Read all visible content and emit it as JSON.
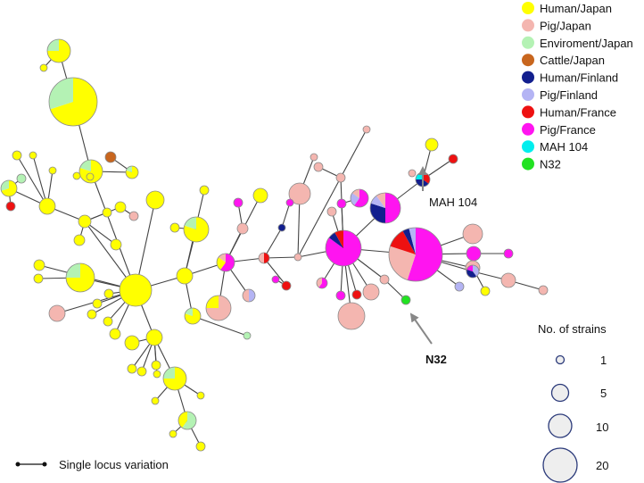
{
  "legend": {
    "categories": [
      {
        "label": "Human/Japan",
        "color": "#FFFF00"
      },
      {
        "label": "Pig/Japan",
        "color": "#F4B6B0"
      },
      {
        "label": "Enviroment/Japan",
        "color": "#B4F2B4"
      },
      {
        "label": "Cattle/Japan",
        "color": "#C8661E"
      },
      {
        "label": "Human/Finland",
        "color": "#121F8E"
      },
      {
        "label": "Pig/Finland",
        "color": "#B4B4F4"
      },
      {
        "label": "Human/France",
        "color": "#EE1111"
      },
      {
        "label": "Pig/France",
        "color": "#FF14F0"
      },
      {
        "label": "MAH 104",
        "color": "#00EEEE"
      },
      {
        "label": "N32",
        "color": "#22E222"
      }
    ]
  },
  "size_legend": {
    "title": "No. of  strains",
    "items": [
      {
        "label": "1",
        "strains": 1
      },
      {
        "label": "5",
        "strains": 5
      },
      {
        "label": "10",
        "strains": 10
      },
      {
        "label": "20",
        "strains": 20
      }
    ]
  },
  "annotations": {
    "mah104": "MAH 104",
    "n32": "N32"
  },
  "footer": {
    "edge_caption": "Single locus variation"
  }
}
